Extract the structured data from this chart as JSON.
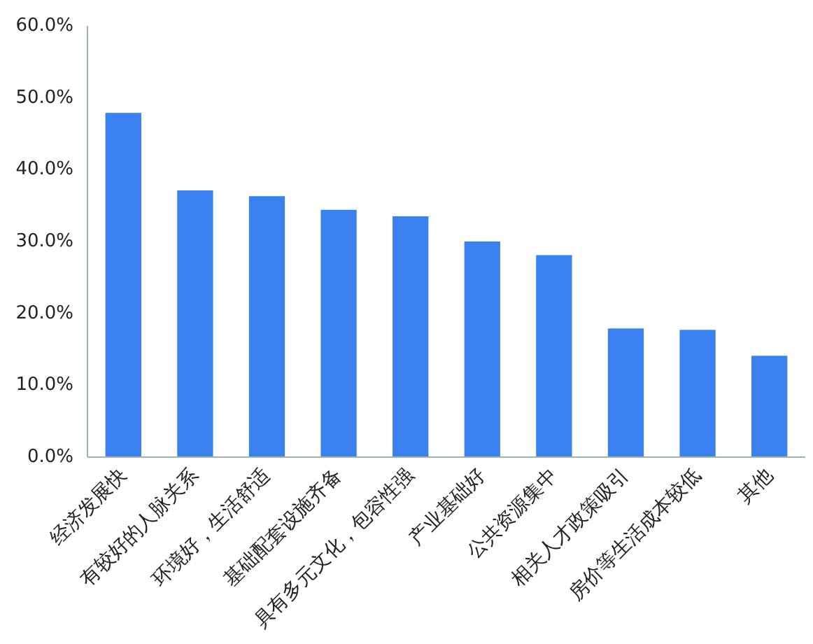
{
  "chart_data": {
    "type": "bar",
    "categories": [
      "经济发展快",
      "有较好的人脉关系",
      "环境好，生活舒适",
      "基础配套设施齐备",
      "具有多元文化，包容性强",
      "产业基础好",
      "公共资源集中",
      "相关人才政策吸引",
      "房价等生活成本较低",
      "其他"
    ],
    "values": [
      47.9,
      37.1,
      36.3,
      34.4,
      33.5,
      30.0,
      28.1,
      17.9,
      17.7,
      14.1
    ],
    "color": "#3a80ee",
    "ylim": [
      0,
      60
    ],
    "yticks": [
      {
        "value": 0,
        "label": "0.0%"
      },
      {
        "value": 10,
        "label": "10.0%"
      },
      {
        "value": 20,
        "label": "20.0%"
      },
      {
        "value": 30,
        "label": "30.0%"
      },
      {
        "value": 40,
        "label": "40.0%"
      },
      {
        "value": 50,
        "label": "50.0%"
      },
      {
        "value": 60,
        "label": "60.0%"
      }
    ],
    "grid": false
  }
}
